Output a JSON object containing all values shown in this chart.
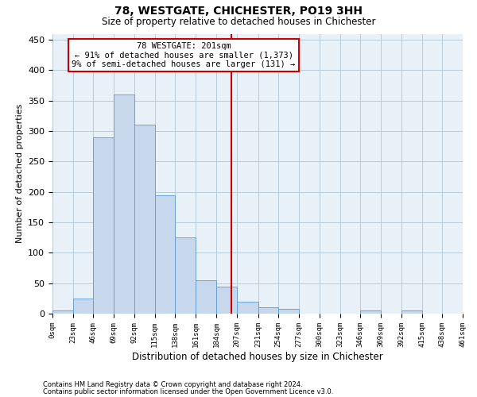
{
  "title": "78, WESTGATE, CHICHESTER, PO19 3HH",
  "subtitle": "Size of property relative to detached houses in Chichester",
  "xlabel": "Distribution of detached houses by size in Chichester",
  "ylabel": "Number of detached properties",
  "footer_line1": "Contains HM Land Registry data © Crown copyright and database right 2024.",
  "footer_line2": "Contains public sector information licensed under the Open Government Licence v3.0.",
  "annotation_line1": "78 WESTGATE: 201sqm",
  "annotation_line2": "← 91% of detached houses are smaller (1,373)",
  "annotation_line3": "9% of semi-detached houses are larger (131) →",
  "property_size": 201,
  "bar_edges": [
    0,
    23,
    46,
    69,
    92,
    115,
    138,
    161,
    184,
    207,
    231,
    254,
    277,
    300,
    323,
    346,
    369,
    392,
    415,
    438,
    461
  ],
  "bar_heights": [
    5,
    25,
    290,
    360,
    310,
    195,
    125,
    55,
    45,
    20,
    10,
    8,
    0,
    0,
    0,
    5,
    0,
    5,
    0,
    0
  ],
  "bar_color": "#c8d8ec",
  "bar_edge_color": "#5b9bd5",
  "vline_color": "#cc0000",
  "vline_x": 201,
  "annotation_box_edge_color": "#cc0000",
  "background_color": "#ffffff",
  "ax_background_color": "#e8f0f8",
  "grid_color": "#b8ccd8",
  "ylim": [
    0,
    460
  ],
  "yticks": [
    0,
    50,
    100,
    150,
    200,
    250,
    300,
    350,
    400,
    450
  ],
  "title_fontsize": 10,
  "subtitle_fontsize": 8.5,
  "ylabel_fontsize": 8,
  "xlabel_fontsize": 8.5,
  "ytick_fontsize": 8,
  "xtick_fontsize": 6.5,
  "annotation_fontsize": 7.5,
  "footer_fontsize": 6
}
